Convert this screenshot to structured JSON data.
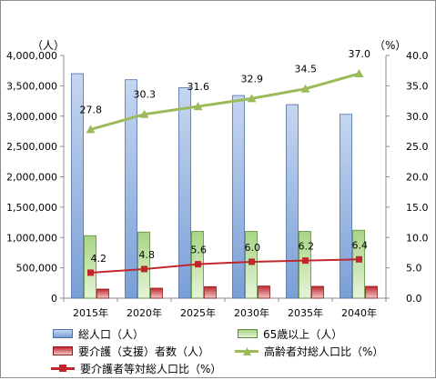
{
  "chart_data": {
    "type": "bar",
    "categories": [
      "2015年",
      "2020年",
      "2025年",
      "2030年",
      "2035年",
      "2040年"
    ],
    "left_axis": {
      "unit_label": "（人）",
      "ylim": [
        0,
        4000000
      ],
      "ticks": [
        "0",
        "500,000",
        "1,000,000",
        "1,500,000",
        "2,000,000",
        "2,500,000",
        "3,000,000",
        "3,500,000",
        "4,000,000"
      ]
    },
    "right_axis": {
      "unit_label": "（%）",
      "ylim": [
        0,
        40
      ],
      "ticks": [
        "0.0",
        "5.0",
        "10.0",
        "15.0",
        "20.0",
        "25.0",
        "30.0",
        "35.0",
        "40.0"
      ]
    },
    "series": [
      {
        "name": "総人口（人）",
        "kind": "bar",
        "axis": "left",
        "color": "#7a9fd6",
        "values": [
          3700000,
          3600000,
          3470000,
          3340000,
          3190000,
          3030000
        ]
      },
      {
        "name": "65歳以上（人）",
        "kind": "bar",
        "axis": "left",
        "color": "#8cc063",
        "values": [
          1030000,
          1090000,
          1100000,
          1100000,
          1100000,
          1120000
        ]
      },
      {
        "name": "要介護（支援）者数（人）",
        "kind": "bar",
        "axis": "left",
        "color": "#c0272d",
        "values": [
          150000,
          165000,
          190000,
          200000,
          195000,
          195000
        ]
      },
      {
        "name": "高齢者対総人口比（%）",
        "kind": "line",
        "axis": "right",
        "color": "#9bbb59",
        "marker": "triangle",
        "values": [
          27.8,
          30.3,
          31.6,
          32.9,
          34.5,
          37.0
        ],
        "labels": [
          "27.8",
          "30.3",
          "31.6",
          "32.9",
          "34.5",
          "37.0"
        ]
      },
      {
        "name": "要介護者等対総人口比（%）",
        "kind": "line",
        "axis": "right",
        "color": "#c0272d",
        "marker": "square",
        "values": [
          4.2,
          4.8,
          5.6,
          6.0,
          6.2,
          6.4
        ],
        "labels": [
          "4.2",
          "4.8",
          "5.6",
          "6.0",
          "6.2",
          "6.4"
        ]
      }
    ],
    "grid": false,
    "legend_position": "bottom"
  }
}
